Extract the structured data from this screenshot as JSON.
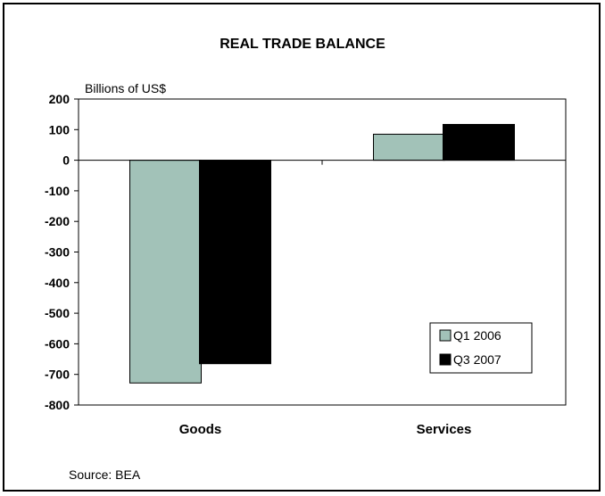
{
  "chart_data": {
    "type": "bar",
    "title": "REAL TRADE BALANCE",
    "ylabel": "Billions of US$",
    "xlabel": "",
    "categories": [
      "Goods",
      "Services"
    ],
    "series": [
      {
        "name": "Q1 2006",
        "values": [
          -728,
          85
        ],
        "color": "#a2c2b8"
      },
      {
        "name": "Q3 2007",
        "values": [
          -665,
          117
        ],
        "color": "#000000"
      }
    ],
    "ylim": [
      -800,
      200
    ],
    "yticks": [
      200,
      100,
      0,
      -100,
      -200,
      -300,
      -400,
      -500,
      -600,
      -700,
      -800
    ],
    "legend_position": "bottom-right",
    "grid": false,
    "source": "Source: BEA"
  }
}
